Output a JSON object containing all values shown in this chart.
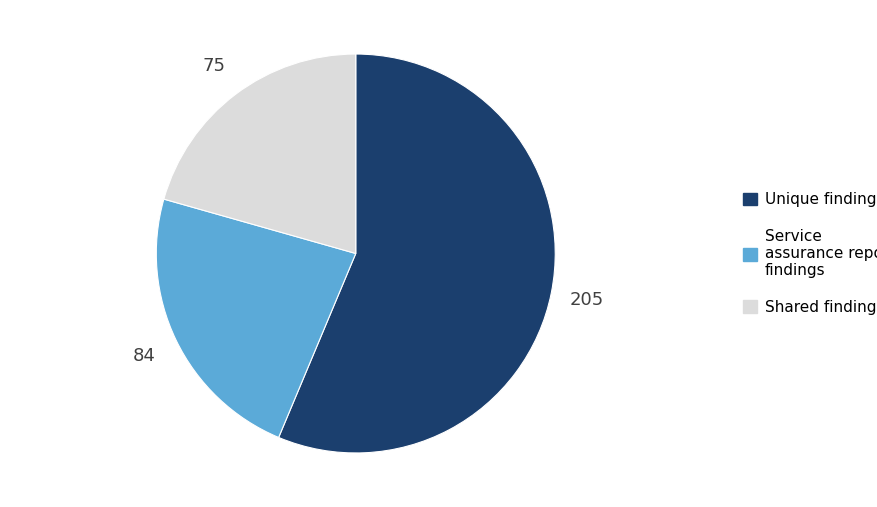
{
  "values": [
    205,
    84,
    75
  ],
  "colors": [
    "#1b3f6e",
    "#5baad8",
    "#dcdcdc"
  ],
  "legend_labels": [
    "Unique findings",
    "Service\nassurance report\nfindings",
    "Shared findings"
  ],
  "value_labels": [
    "205",
    "84",
    "75"
  ],
  "background_color": "#ffffff",
  "label_fontsize": 13,
  "legend_fontsize": 11,
  "label_color": "#404040"
}
